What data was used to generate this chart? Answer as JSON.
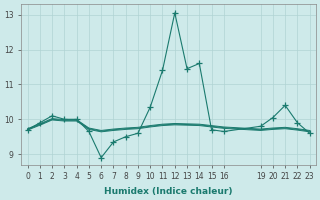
{
  "xlabel": "Humidex (Indice chaleur)",
  "bg_color": "#ceeaea",
  "grid_color": "#b0d4d4",
  "line_color": "#1a7a6e",
  "marker": "+",
  "xlim": [
    -0.5,
    23.5
  ],
  "ylim": [
    8.7,
    13.3
  ],
  "yticks": [
    9,
    10,
    11,
    12,
    13
  ],
  "xticks": [
    0,
    1,
    2,
    3,
    4,
    5,
    6,
    7,
    8,
    9,
    10,
    11,
    12,
    13,
    14,
    15,
    16,
    19,
    20,
    21,
    22,
    23
  ],
  "main_x": [
    0,
    1,
    2,
    3,
    4,
    5,
    6,
    7,
    8,
    9,
    10,
    11,
    12,
    13,
    14,
    15,
    16,
    19,
    20,
    21,
    22,
    23
  ],
  "main_y": [
    9.7,
    9.9,
    10.1,
    10.0,
    10.0,
    9.65,
    8.9,
    9.35,
    9.5,
    9.6,
    10.35,
    11.4,
    13.05,
    11.45,
    11.6,
    9.7,
    9.65,
    9.8,
    10.05,
    10.4,
    9.9,
    9.6
  ],
  "flat_lines": [
    {
      "x": [
        0,
        1,
        2,
        3,
        4,
        5,
        6,
        7,
        8,
        9,
        10,
        11,
        12,
        13,
        14,
        15,
        16,
        19,
        20,
        21,
        22,
        23
      ],
      "y": [
        9.73,
        9.87,
        10.02,
        9.99,
        9.99,
        9.75,
        9.68,
        9.72,
        9.75,
        9.77,
        9.82,
        9.86,
        9.88,
        9.87,
        9.86,
        9.82,
        9.78,
        9.72,
        9.75,
        9.77,
        9.73,
        9.68
      ]
    },
    {
      "x": [
        0,
        1,
        2,
        3,
        4,
        5,
        6,
        7,
        8,
        9,
        10,
        11,
        12,
        13,
        14,
        15,
        16,
        19,
        20,
        21,
        22,
        23
      ],
      "y": [
        9.71,
        9.85,
        10.0,
        9.97,
        9.97,
        9.73,
        9.66,
        9.7,
        9.73,
        9.75,
        9.8,
        9.84,
        9.86,
        9.85,
        9.84,
        9.8,
        9.76,
        9.7,
        9.73,
        9.75,
        9.71,
        9.66
      ]
    },
    {
      "x": [
        0,
        1,
        2,
        3,
        4,
        5,
        6,
        7,
        8,
        9,
        10,
        11,
        12,
        13,
        14,
        15,
        16,
        19,
        20,
        21,
        22,
        23
      ],
      "y": [
        9.69,
        9.83,
        9.98,
        9.95,
        9.95,
        9.71,
        9.64,
        9.68,
        9.71,
        9.73,
        9.78,
        9.82,
        9.84,
        9.83,
        9.82,
        9.78,
        9.74,
        9.68,
        9.71,
        9.73,
        9.69,
        9.64
      ]
    }
  ]
}
